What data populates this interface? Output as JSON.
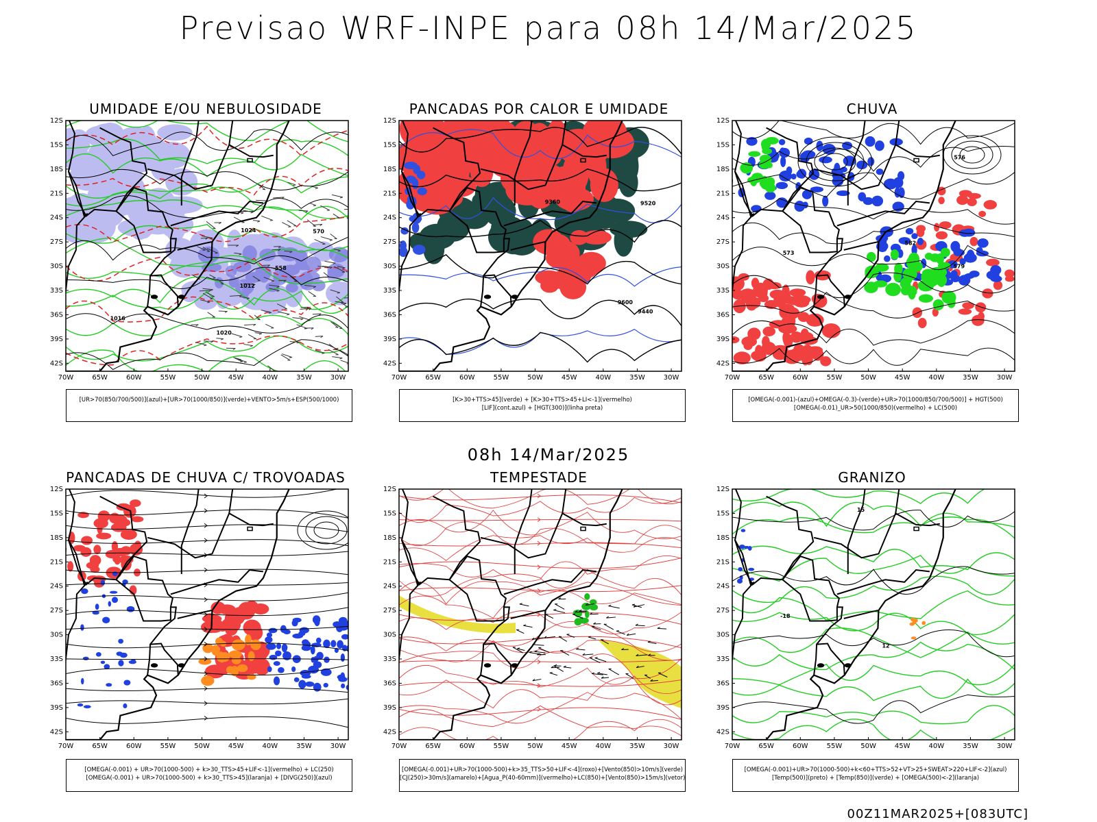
{
  "header": {
    "title": "Previsao WRF-INPE  para 08h 14/Mar/2025"
  },
  "mid_label": "08h 14/Mar/2025",
  "footer": {
    "run_label": "00Z11MAR2025+[083UTC]"
  },
  "lat_labels": [
    "12S",
    "15S",
    "18S",
    "21S",
    "24S",
    "27S",
    "30S",
    "33S",
    "36S",
    "39S",
    "42S"
  ],
  "lon_labels": [
    "70W",
    "65W",
    "60W",
    "55W",
    "50W",
    "45W",
    "40W",
    "35W",
    "30W"
  ],
  "panels": [
    {
      "title": "UMIDADE E/OU NEBULOSIDADE",
      "legend": [
        "[UR>70(850/700/500)](azul)+[UR>70(1000/850)](verde)+VENTO>5m/s+ESP(500/1000)"
      ],
      "contour_labels": [
        "1012",
        "1016",
        "1020",
        "1024",
        "570",
        "558"
      ]
    },
    {
      "title": "PANCADAS POR CALOR E UMIDADE",
      "legend": [
        "[K>30+TTS>45](verde)  +  [K>30+TTS>45+LI<-1](vermelho)",
        "[LIF](cont.azul)  +  [HGT(300)](linha preta)"
      ],
      "contour_labels": [
        "9600",
        "9520",
        "9440",
        "9360"
      ]
    },
    {
      "title": "CHUVA",
      "legend": [
        "[OMEGA(-0.001)-(azul)+OMEGA(-0.3)-(verde)+UR>70(1000/850/700/500)]  +  HGT(500)",
        "[OMEGA(-0.01)_UR>50(1000/850)(vermelho)  +  LC(500)"
      ],
      "contour_labels": [
        "582",
        "579",
        "576",
        "573"
      ]
    },
    {
      "title": "PANCADAS DE CHUVA C/ TROVOADAS",
      "legend": [
        "[OMEGA(-0.001)  +  UR>70(1000-500)  +  k>30_TTS>45+LIF<-1](vermelho)  +  LC(250)",
        "[OMEGA(-0.001)  +  UR>70(1000-500)  +  k>30_TTS>45](laranja)  +  [DIVG(250)](azul)"
      ],
      "contour_labels": []
    },
    {
      "title": "TEMPESTADE",
      "legend": [
        "[OMEGA(-0.001)+UR>70(1000-500)+k>35_TTS>50+LIF<-4](roxo)+[Vento(850)>10m/s](verde)",
        "[CJ(250)>30m/s](amarelo)+[Agua_P(40-60mm)](vermelho)+LC(850)+[Vento(850)>15m/s](vetor)"
      ],
      "contour_labels": []
    },
    {
      "title": "GRANIZO",
      "legend": [
        "[OMEGA(-0.001)+UR>70(1000-500)+k<60+TTS>52+VT>25+SWEAT>220+LIF<-2](azul)",
        "[Temp(500)](preto)  +  [Temp(850)](verde)  +  [OMEGA(500)<-2](laranja)"
      ],
      "contour_labels": [
        "15",
        "12",
        "-18"
      ]
    }
  ]
}
